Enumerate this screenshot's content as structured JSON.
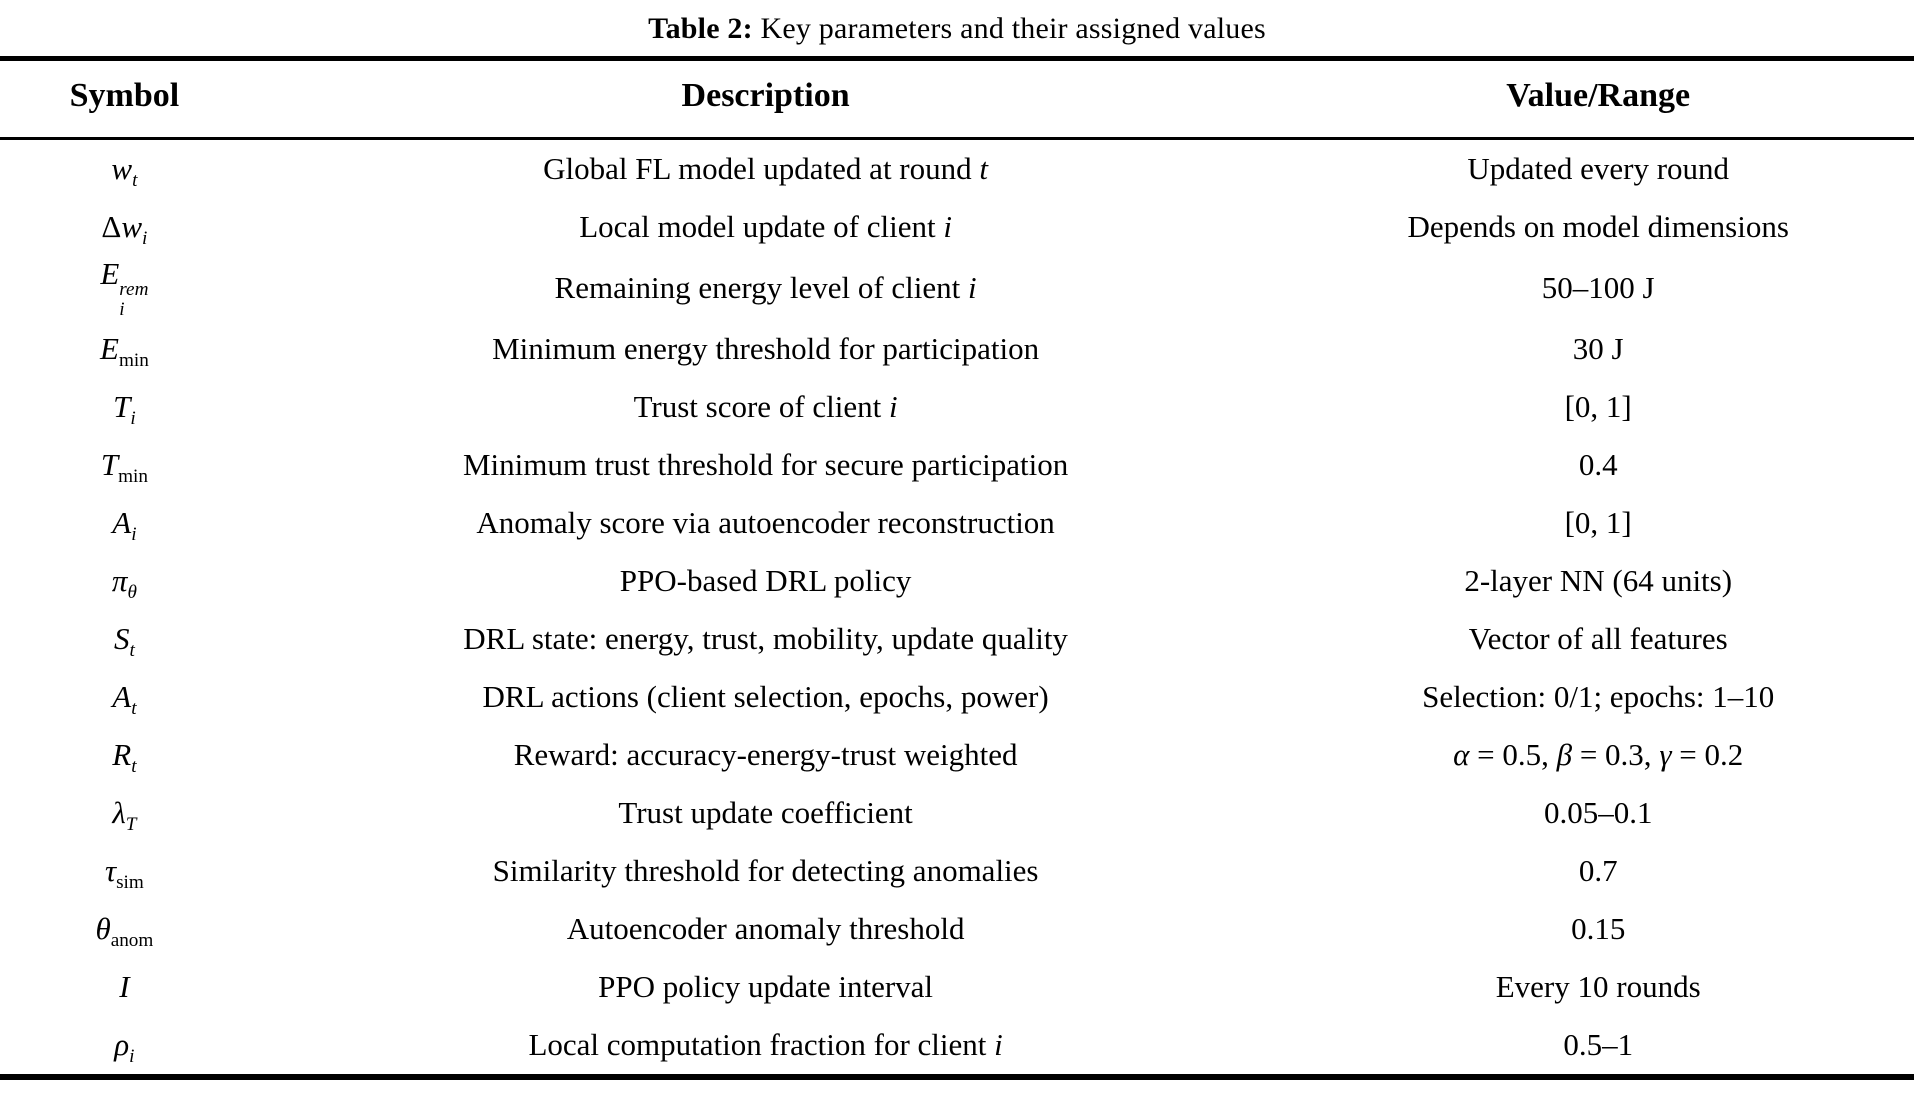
{
  "caption": {
    "label": "Table 2:",
    "text": "Key parameters and their assigned values"
  },
  "colors": {
    "background": "#ffffff",
    "text": "#000000",
    "rule": "#000000"
  },
  "table": {
    "columns": [
      "Symbol",
      "Description",
      "Value/Range"
    ],
    "rows": [
      {
        "symbol": {
          "main": [
            {
              "t": "w",
              "i": true
            }
          ],
          "sub": [
            {
              "t": "t",
              "i": true
            }
          ]
        },
        "desc": [
          {
            "t": "Global FL model updated at round "
          },
          {
            "t": "t",
            "i": true
          }
        ],
        "value": [
          {
            "t": "Updated every round"
          }
        ]
      },
      {
        "symbol": {
          "main": [
            {
              "t": "Δ"
            },
            {
              "t": "w",
              "i": true
            }
          ],
          "sub": [
            {
              "t": "i",
              "i": true
            }
          ]
        },
        "desc": [
          {
            "t": "Local model update of client "
          },
          {
            "t": "i",
            "i": true
          }
        ],
        "value": [
          {
            "t": "Depends on model dimensions"
          }
        ]
      },
      {
        "symbol": {
          "main": [
            {
              "t": "E",
              "i": true
            }
          ],
          "sup": [
            {
              "t": "rem",
              "i": true
            }
          ],
          "sub": [
            {
              "t": "i",
              "i": true
            }
          ]
        },
        "desc": [
          {
            "t": "Remaining energy level of client "
          },
          {
            "t": "i",
            "i": true
          }
        ],
        "value": [
          {
            "t": "50–100 J"
          }
        ]
      },
      {
        "symbol": {
          "main": [
            {
              "t": "E",
              "i": true
            }
          ],
          "sub": [
            {
              "t": "min"
            }
          ]
        },
        "desc": [
          {
            "t": "Minimum energy threshold for participation"
          }
        ],
        "value": [
          {
            "t": "30 J"
          }
        ]
      },
      {
        "symbol": {
          "main": [
            {
              "t": "T",
              "i": true
            }
          ],
          "sub": [
            {
              "t": "i",
              "i": true
            }
          ]
        },
        "desc": [
          {
            "t": "Trust score of client "
          },
          {
            "t": "i",
            "i": true
          }
        ],
        "value": [
          {
            "t": "[0, 1]"
          }
        ]
      },
      {
        "symbol": {
          "main": [
            {
              "t": "T",
              "i": true
            }
          ],
          "sub": [
            {
              "t": "min"
            }
          ]
        },
        "desc": [
          {
            "t": "Minimum trust threshold for secure participation"
          }
        ],
        "value": [
          {
            "t": "0.4"
          }
        ]
      },
      {
        "symbol": {
          "main": [
            {
              "t": "A",
              "i": true,
              "script": true
            }
          ],
          "sub": [
            {
              "t": "i",
              "i": true
            }
          ]
        },
        "desc": [
          {
            "t": "Anomaly score via autoencoder reconstruction"
          }
        ],
        "value": [
          {
            "t": "[0, 1]"
          }
        ]
      },
      {
        "symbol": {
          "main": [
            {
              "t": "π",
              "i": true
            }
          ],
          "sub": [
            {
              "t": "θ",
              "i": true
            }
          ]
        },
        "desc": [
          {
            "t": "PPO-based DRL policy"
          }
        ],
        "value": [
          {
            "t": "2-layer NN (64 units)"
          }
        ]
      },
      {
        "symbol": {
          "main": [
            {
              "t": "S",
              "i": true
            }
          ],
          "sub": [
            {
              "t": "t",
              "i": true
            }
          ]
        },
        "desc": [
          {
            "t": "DRL state: energy, trust, mobility, update quality"
          }
        ],
        "value": [
          {
            "t": "Vector of all features"
          }
        ]
      },
      {
        "symbol": {
          "main": [
            {
              "t": "A",
              "i": true
            }
          ],
          "sub": [
            {
              "t": "t",
              "i": true
            }
          ]
        },
        "desc": [
          {
            "t": "DRL actions (client selection, epochs, power)"
          }
        ],
        "value": [
          {
            "t": "Selection: 0/1; epochs: 1–10"
          }
        ]
      },
      {
        "symbol": {
          "main": [
            {
              "t": "R",
              "i": true
            }
          ],
          "sub": [
            {
              "t": "t",
              "i": true
            }
          ]
        },
        "desc": [
          {
            "t": "Reward: accuracy-energy-trust weighted"
          }
        ],
        "value": [
          {
            "t": "α",
            "i": true
          },
          {
            "t": " = 0.5,  "
          },
          {
            "t": "β",
            "i": true
          },
          {
            "t": " = 0.3,  "
          },
          {
            "t": "γ",
            "i": true
          },
          {
            "t": " = 0.2"
          }
        ]
      },
      {
        "symbol": {
          "main": [
            {
              "t": "λ",
              "i": true
            }
          ],
          "sub": [
            {
              "t": "T",
              "i": true
            }
          ]
        },
        "desc": [
          {
            "t": "Trust update coefficient"
          }
        ],
        "value": [
          {
            "t": "0.05–0.1"
          }
        ]
      },
      {
        "symbol": {
          "main": [
            {
              "t": "τ",
              "i": true
            }
          ],
          "sub": [
            {
              "t": "sim"
            }
          ]
        },
        "desc": [
          {
            "t": "Similarity threshold for detecting anomalies"
          }
        ],
        "value": [
          {
            "t": "0.7"
          }
        ]
      },
      {
        "symbol": {
          "main": [
            {
              "t": "θ",
              "i": true
            }
          ],
          "sub": [
            {
              "t": "anom"
            }
          ]
        },
        "desc": [
          {
            "t": "Autoencoder anomaly threshold"
          }
        ],
        "value": [
          {
            "t": "0.15"
          }
        ]
      },
      {
        "symbol": {
          "main": [
            {
              "t": "I",
              "i": true
            }
          ]
        },
        "desc": [
          {
            "t": "PPO policy update interval"
          }
        ],
        "value": [
          {
            "t": "Every 10 rounds"
          }
        ]
      },
      {
        "symbol": {
          "main": [
            {
              "t": "ρ",
              "i": true
            }
          ],
          "sub": [
            {
              "t": "i",
              "i": true
            }
          ]
        },
        "desc": [
          {
            "t": "Local computation fraction for client "
          },
          {
            "t": "i",
            "i": true
          }
        ],
        "value": [
          {
            "t": "0.5–1"
          }
        ]
      }
    ]
  }
}
